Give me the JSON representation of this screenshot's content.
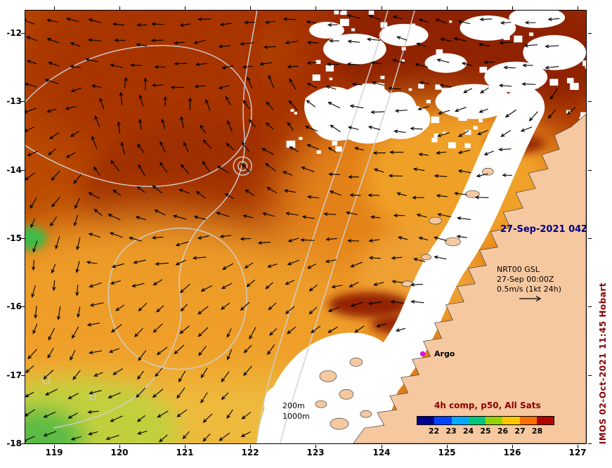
{
  "axes": {
    "lat_labels": [
      "-12",
      "-13",
      "-14",
      "-15",
      "-16",
      "-17",
      "-18"
    ],
    "lon_labels": [
      "119",
      "120",
      "121",
      "122",
      "123",
      "124",
      "125",
      "126",
      "127"
    ]
  },
  "annotations": {
    "datetime": "27-Sep-2021 04Z",
    "product_line1": "NRT00 GSL",
    "product_line2": "27-Sep 00:00Z",
    "product_line3": "0.5m/s (1kt 24h)",
    "argo_label": "Argo",
    "depth_label_1": "200m",
    "depth_label_2": "1000m",
    "credit": "IMOS 02-Oct-2021 11:45 Hobart"
  },
  "colorbar": {
    "title": "4h comp, p50, All Sats",
    "tick_labels": [
      "22",
      "23",
      "24",
      "25",
      "26",
      "27",
      "28"
    ],
    "segment_colors": [
      "#000090",
      "#0044ff",
      "#00aaff",
      "#00c878",
      "#96d200",
      "#ffc800",
      "#ff6e00",
      "#b40000"
    ]
  },
  "colors": {
    "land": "#f6c8a0",
    "credit_text": "#8b0000",
    "datetime_text": "#00008b",
    "argo_marker": "#ff00ff",
    "contour_line": "#d0d0d0",
    "colorbar_title": "#8b0000"
  }
}
